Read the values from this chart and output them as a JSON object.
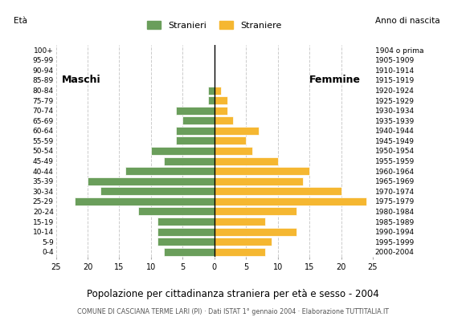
{
  "age_groups": [
    "0-4",
    "5-9",
    "10-14",
    "15-19",
    "20-24",
    "25-29",
    "30-34",
    "35-39",
    "40-44",
    "45-49",
    "50-54",
    "55-59",
    "60-64",
    "65-69",
    "70-74",
    "75-79",
    "80-84",
    "85-89",
    "90-94",
    "95-99",
    "100+"
  ],
  "birth_years": [
    "2000-2004",
    "1995-1999",
    "1990-1994",
    "1985-1989",
    "1980-1984",
    "1975-1979",
    "1970-1974",
    "1965-1969",
    "1960-1964",
    "1955-1959",
    "1950-1954",
    "1945-1949",
    "1940-1944",
    "1935-1939",
    "1930-1934",
    "1925-1929",
    "1920-1924",
    "1915-1919",
    "1910-1914",
    "1905-1909",
    "1904 o prima"
  ],
  "males": [
    8,
    9,
    9,
    9,
    12,
    22,
    18,
    20,
    14,
    8,
    10,
    6,
    6,
    5,
    6,
    1,
    1,
    0,
    0,
    0,
    0
  ],
  "females": [
    8,
    9,
    13,
    8,
    13,
    24,
    20,
    14,
    15,
    10,
    6,
    5,
    7,
    3,
    2,
    2,
    1,
    0,
    0,
    0,
    0
  ],
  "male_color": "#6a9e5b",
  "female_color": "#f5b731",
  "title": "Popolazione per cittadinanza straniera per età e sesso - 2004",
  "subtitle": "COMUNE DI CASCIANA TERME LARI (PI) · Dati ISTAT 1° gennaio 2004 · Elaborazione TUTTITALIA.IT",
  "legend_male": "Stranieri",
  "legend_female": "Straniere",
  "ylabel_left": "Età",
  "ylabel_right": "Anno di nascita",
  "label_maschi": "Maschi",
  "label_femmine": "Femmine",
  "xlim": 25,
  "background_color": "#ffffff",
  "grid_color": "#cccccc"
}
